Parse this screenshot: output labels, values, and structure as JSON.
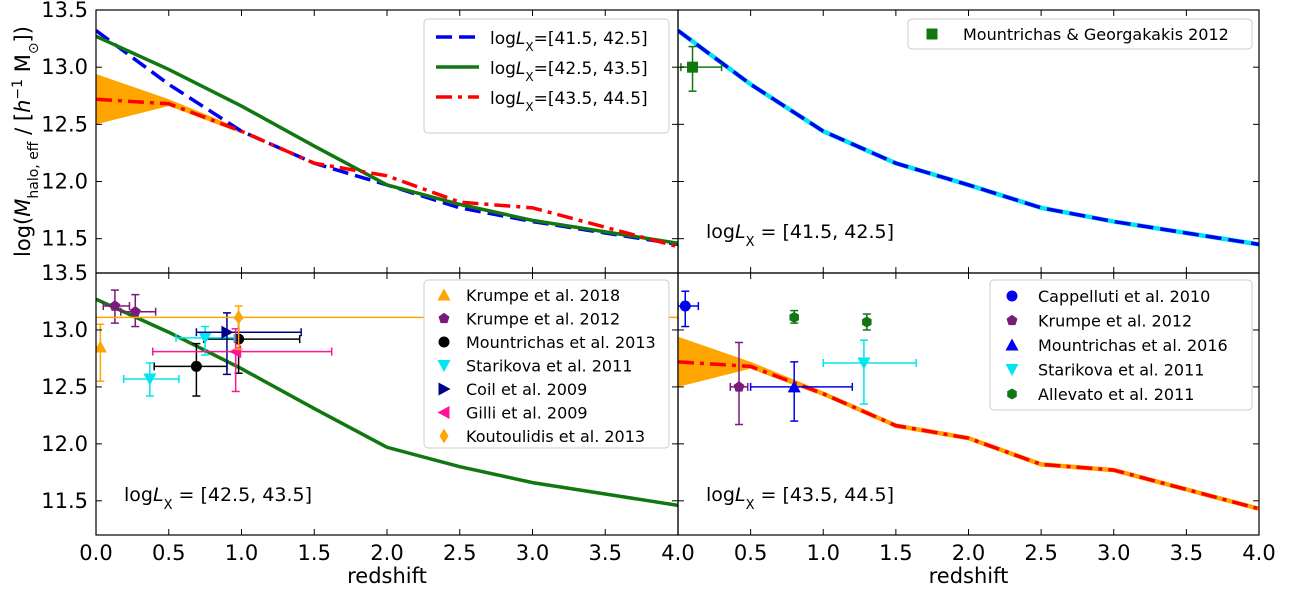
{
  "chart_data": [
    {
      "panel": "top-left",
      "type": "line",
      "xlim": [
        0.0,
        4.0
      ],
      "ylim": [
        11.2,
        13.5
      ],
      "ylabel": "log(M_halo,eff / [h^-1 M_sun])",
      "ylabel_parts": {
        "a": "log(",
        "b": "M",
        "sub1": "halo, eff",
        "c": " / [",
        "d": "h",
        "sup1": "−1",
        "e": " M",
        "sub2": "⊙",
        "f": "])"
      },
      "yticks": [
        "11.5",
        "12.0",
        "12.5",
        "13.0",
        "13.5"
      ],
      "series": [
        {
          "name": "logL_X=[41.5, 42.5]",
          "label_prefix": "log",
          "label_sym": "L",
          "label_sub": "X",
          "label_range": "=[41.5, 42.5]",
          "color": "#0000ee",
          "style": "dashed",
          "x": [
            0.0,
            0.5,
            1.0,
            1.5,
            2.0,
            2.5,
            3.0,
            3.5,
            4.0
          ],
          "y": [
            13.32,
            12.85,
            12.44,
            12.16,
            11.97,
            11.77,
            11.65,
            11.55,
            11.45
          ]
        },
        {
          "name": "logL_X=[42.5, 43.5]",
          "label_prefix": "log",
          "label_sym": "L",
          "label_sub": "X",
          "label_range": "=[42.5, 43.5]",
          "color": "#117711",
          "style": "solid",
          "x": [
            0.0,
            0.5,
            1.0,
            1.5,
            2.0,
            2.5,
            3.0,
            3.5,
            4.0
          ],
          "y": [
            13.27,
            12.98,
            12.66,
            12.31,
            11.97,
            11.8,
            11.66,
            11.56,
            11.46
          ]
        },
        {
          "name": "logL_X=[43.5, 44.5]",
          "label_prefix": "log",
          "label_sym": "L",
          "label_sub": "X",
          "label_range": "=[43.5, 44.5]",
          "color": "#ff0000",
          "style": "dashdot",
          "x": [
            0.0,
            0.5,
            1.0,
            1.5,
            2.0,
            2.5,
            3.0,
            3.5,
            4.0
          ],
          "y": [
            12.72,
            12.68,
            12.44,
            12.16,
            12.05,
            11.82,
            11.77,
            11.6,
            11.43
          ]
        }
      ],
      "band": {
        "color": "#ffa500",
        "x": [
          0.0,
          0.5,
          1.0
        ],
        "y_low": [
          12.5,
          12.66,
          12.42
        ],
        "y_high": [
          12.94,
          12.72,
          12.46
        ]
      },
      "legend": "top-right"
    },
    {
      "panel": "top-right",
      "type": "line",
      "xlim": [
        0.0,
        4.0
      ],
      "ylim": [
        11.2,
        13.5
      ],
      "annotation": {
        "prefix": "log",
        "sym": "L",
        "sub": "X",
        "range": " = [41.5, 42.5]"
      },
      "series": [
        {
          "name": "model",
          "color": "#0000ee",
          "underlay": "#00e5ee",
          "style": "dashed",
          "x": [
            0.0,
            0.5,
            1.0,
            1.5,
            2.0,
            2.5,
            3.0,
            3.5,
            4.0
          ],
          "y": [
            13.32,
            12.85,
            12.44,
            12.16,
            11.97,
            11.77,
            11.65,
            11.55,
            11.45
          ]
        }
      ],
      "points": [
        {
          "name": "Mountrichas & Georgakakis 2012",
          "marker": "square",
          "color": "#117711",
          "x": 0.1,
          "y": 13.0,
          "xerr": [
            0.08,
            0.2
          ],
          "yerr": [
            0.21,
            0.18
          ]
        }
      ],
      "legend": "top-right"
    },
    {
      "panel": "bottom-left",
      "type": "line",
      "xlim": [
        0.0,
        4.0
      ],
      "ylim": [
        11.2,
        13.5
      ],
      "xlabel": "redshift",
      "ylabel": "log(M_halo,eff / [h^-1 M_sun])",
      "xticks": [
        "0.0",
        "0.5",
        "1.0",
        "1.5",
        "2.0",
        "2.5",
        "3.0",
        "3.5",
        "4.0"
      ],
      "yticks": [
        "11.5",
        "12.0",
        "12.5",
        "13.0",
        "13.5"
      ],
      "annotation": {
        "prefix": "log",
        "sym": "L",
        "sub": "X",
        "range": " = [42.5, 43.5]"
      },
      "series": [
        {
          "name": "model",
          "color": "#117711",
          "style": "solid",
          "x": [
            0.0,
            0.5,
            1.0,
            1.5,
            2.0,
            2.5,
            3.0,
            3.5,
            4.0
          ],
          "y": [
            13.27,
            12.98,
            12.66,
            12.31,
            11.97,
            11.8,
            11.66,
            11.56,
            11.46
          ]
        }
      ],
      "points": [
        {
          "name": "Krumpe et al. 2018",
          "marker": "triangle-up",
          "color": "#ffa500",
          "x": 0.03,
          "y": 12.85,
          "xerr": [
            0.03,
            0.0
          ],
          "yerr": [
            0.3,
            0.2
          ]
        },
        {
          "name": "Krumpe et al. 2012",
          "marker": "pentagon",
          "color": "#7a1a7a",
          "x": 0.13,
          "y": 13.21,
          "xerr": [
            0.08,
            0.1
          ],
          "yerr": [
            0.15,
            0.14
          ],
          "x2": 0.27,
          "y2": 13.16,
          "x2err": [
            0.1,
            0.14
          ],
          "y2err": [
            0.13,
            0.15
          ]
        },
        {
          "name": "Mountrichas et al. 2013",
          "marker": "circle",
          "color": "#000000",
          "x": 0.69,
          "y": 12.68,
          "xerr": [
            0.29,
            0.21
          ],
          "yerr": [
            0.26,
            0.2
          ],
          "x2": 0.98,
          "y2": 12.92,
          "x2err": [
            0.24,
            0.42
          ],
          "y2err": [
            0.3,
            0.18
          ]
        },
        {
          "name": "Starikova et al. 2011",
          "marker": "triangle-down",
          "color": "#00e5ee",
          "x": 0.37,
          "y": 12.57,
          "xerr": [
            0.18,
            0.2
          ],
          "yerr": [
            0.15,
            0.14
          ],
          "x2": 0.75,
          "y2": 12.93,
          "x2err": [
            0.2,
            0.2
          ],
          "y2err": [
            0.15,
            0.1
          ]
        },
        {
          "name": "Coil et al. 2009",
          "marker": "triangle-right",
          "color": "#00008b",
          "x": 0.9,
          "y": 12.98,
          "xerr": [
            0.21,
            0.51
          ],
          "yerr": [
            0.37,
            0.17
          ]
        },
        {
          "name": "Gilli et al. 2009",
          "marker": "triangle-left",
          "color": "#ff1493",
          "x": 0.96,
          "y": 12.81,
          "xerr": [
            0.57,
            0.66
          ],
          "yerr": [
            0.35,
            0.2
          ]
        },
        {
          "name": "Koutoulidis et al. 2013",
          "marker": "diamond",
          "color": "#ffa500",
          "x": 0.98,
          "y": 13.11,
          "xerr": [
            0.98,
            3.02
          ],
          "yerr": [
            0.28,
            0.1
          ]
        }
      ],
      "legend": "top-right"
    },
    {
      "panel": "bottom-right",
      "type": "line",
      "xlim": [
        0.0,
        4.0
      ],
      "ylim": [
        11.2,
        13.5
      ],
      "xlabel": "redshift",
      "xticks": [
        "0.5",
        "1.0",
        "1.5",
        "2.0",
        "2.5",
        "3.0",
        "3.5",
        "4.0"
      ],
      "annotation": {
        "prefix": "log",
        "sym": "L",
        "sub": "X",
        "range": " = [43.5, 44.5]"
      },
      "series": [
        {
          "name": "model",
          "color": "#ff0000",
          "underlay": "#ffa500",
          "style": "dashdot",
          "x": [
            0.0,
            0.5,
            1.0,
            1.5,
            2.0,
            2.5,
            3.0,
            3.5,
            4.0
          ],
          "y": [
            12.72,
            12.68,
            12.44,
            12.16,
            12.05,
            11.82,
            11.77,
            11.6,
            11.43
          ]
        }
      ],
      "band": {
        "color": "#ffa500",
        "x": [
          0.0,
          0.5,
          1.0
        ],
        "y_low": [
          12.5,
          12.66,
          12.42
        ],
        "y_high": [
          12.94,
          12.72,
          12.46
        ]
      },
      "points": [
        {
          "name": "Cappelluti et al. 2010",
          "marker": "circle",
          "color": "#0000ee",
          "x": 0.05,
          "y": 13.21,
          "xerr": [
            0.05,
            0.09
          ],
          "yerr": [
            0.18,
            0.13
          ]
        },
        {
          "name": "Krumpe et al. 2012",
          "marker": "pentagon",
          "color": "#7a1a7a",
          "x": 0.42,
          "y": 12.5,
          "xerr": [
            0.06,
            0.06
          ],
          "yerr": [
            0.33,
            0.39
          ]
        },
        {
          "name": "Mountrichas et al. 2016",
          "marker": "triangle-up",
          "color": "#0000ee",
          "x": 0.8,
          "y": 12.5,
          "xerr": [
            0.3,
            0.4
          ],
          "yerr": [
            0.3,
            0.22
          ]
        },
        {
          "name": "Starikova et al. 2011",
          "marker": "triangle-down",
          "color": "#00e5ee",
          "x": 1.28,
          "y": 12.71,
          "xerr": [
            0.28,
            0.36
          ],
          "yerr": [
            0.36,
            0.2
          ]
        },
        {
          "name": "Allevato et al. 2011",
          "marker": "hexagon",
          "color": "#117711",
          "x": 0.8,
          "y": 13.11,
          "xerr": [
            0.0,
            0.0
          ],
          "yerr": [
            0.05,
            0.06
          ],
          "x2": 1.3,
          "y2": 13.07,
          "x2err": [
            0.0,
            0.0
          ],
          "y2err": [
            0.07,
            0.07
          ]
        }
      ],
      "legend": "top-right"
    }
  ]
}
